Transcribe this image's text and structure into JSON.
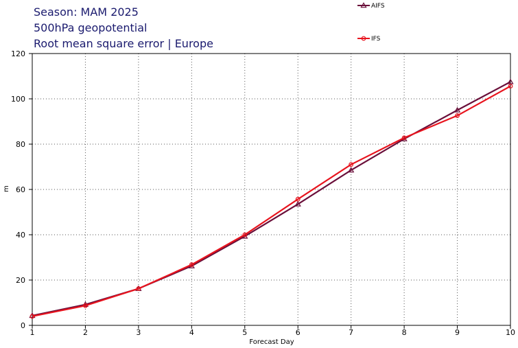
{
  "title": {
    "line1": "Season: MAM 2025",
    "line2": "500hPa geopotential",
    "line3": "Root mean square error | Europe"
  },
  "chart_data": {
    "type": "line",
    "x": [
      1,
      2,
      3,
      4,
      5,
      6,
      7,
      8,
      9,
      10
    ],
    "series": [
      {
        "name": "AIFS",
        "color": "#6a0f3a",
        "marker": "triangle",
        "values": [
          4.3,
          9.2,
          16.2,
          26.2,
          39.3,
          53.5,
          68.5,
          82.3,
          95.0,
          107.5
        ]
      },
      {
        "name": "IFS",
        "color": "#e8141e",
        "marker": "circle",
        "values": [
          4.0,
          8.7,
          16.2,
          26.8,
          40.0,
          55.7,
          71.0,
          82.8,
          92.6,
          105.6
        ]
      }
    ],
    "xlabel": "Forecast Day",
    "ylabel": "m",
    "xlim": [
      1,
      10
    ],
    "ylim": [
      0,
      120
    ],
    "x_ticks": [
      "1",
      "2",
      "3",
      "4",
      "5",
      "6",
      "7",
      "8",
      "9",
      "10"
    ],
    "y_ticks": [
      "0",
      "20",
      "40",
      "60",
      "80",
      "100",
      "120"
    ],
    "grid": true,
    "legend_position": "top-right"
  }
}
